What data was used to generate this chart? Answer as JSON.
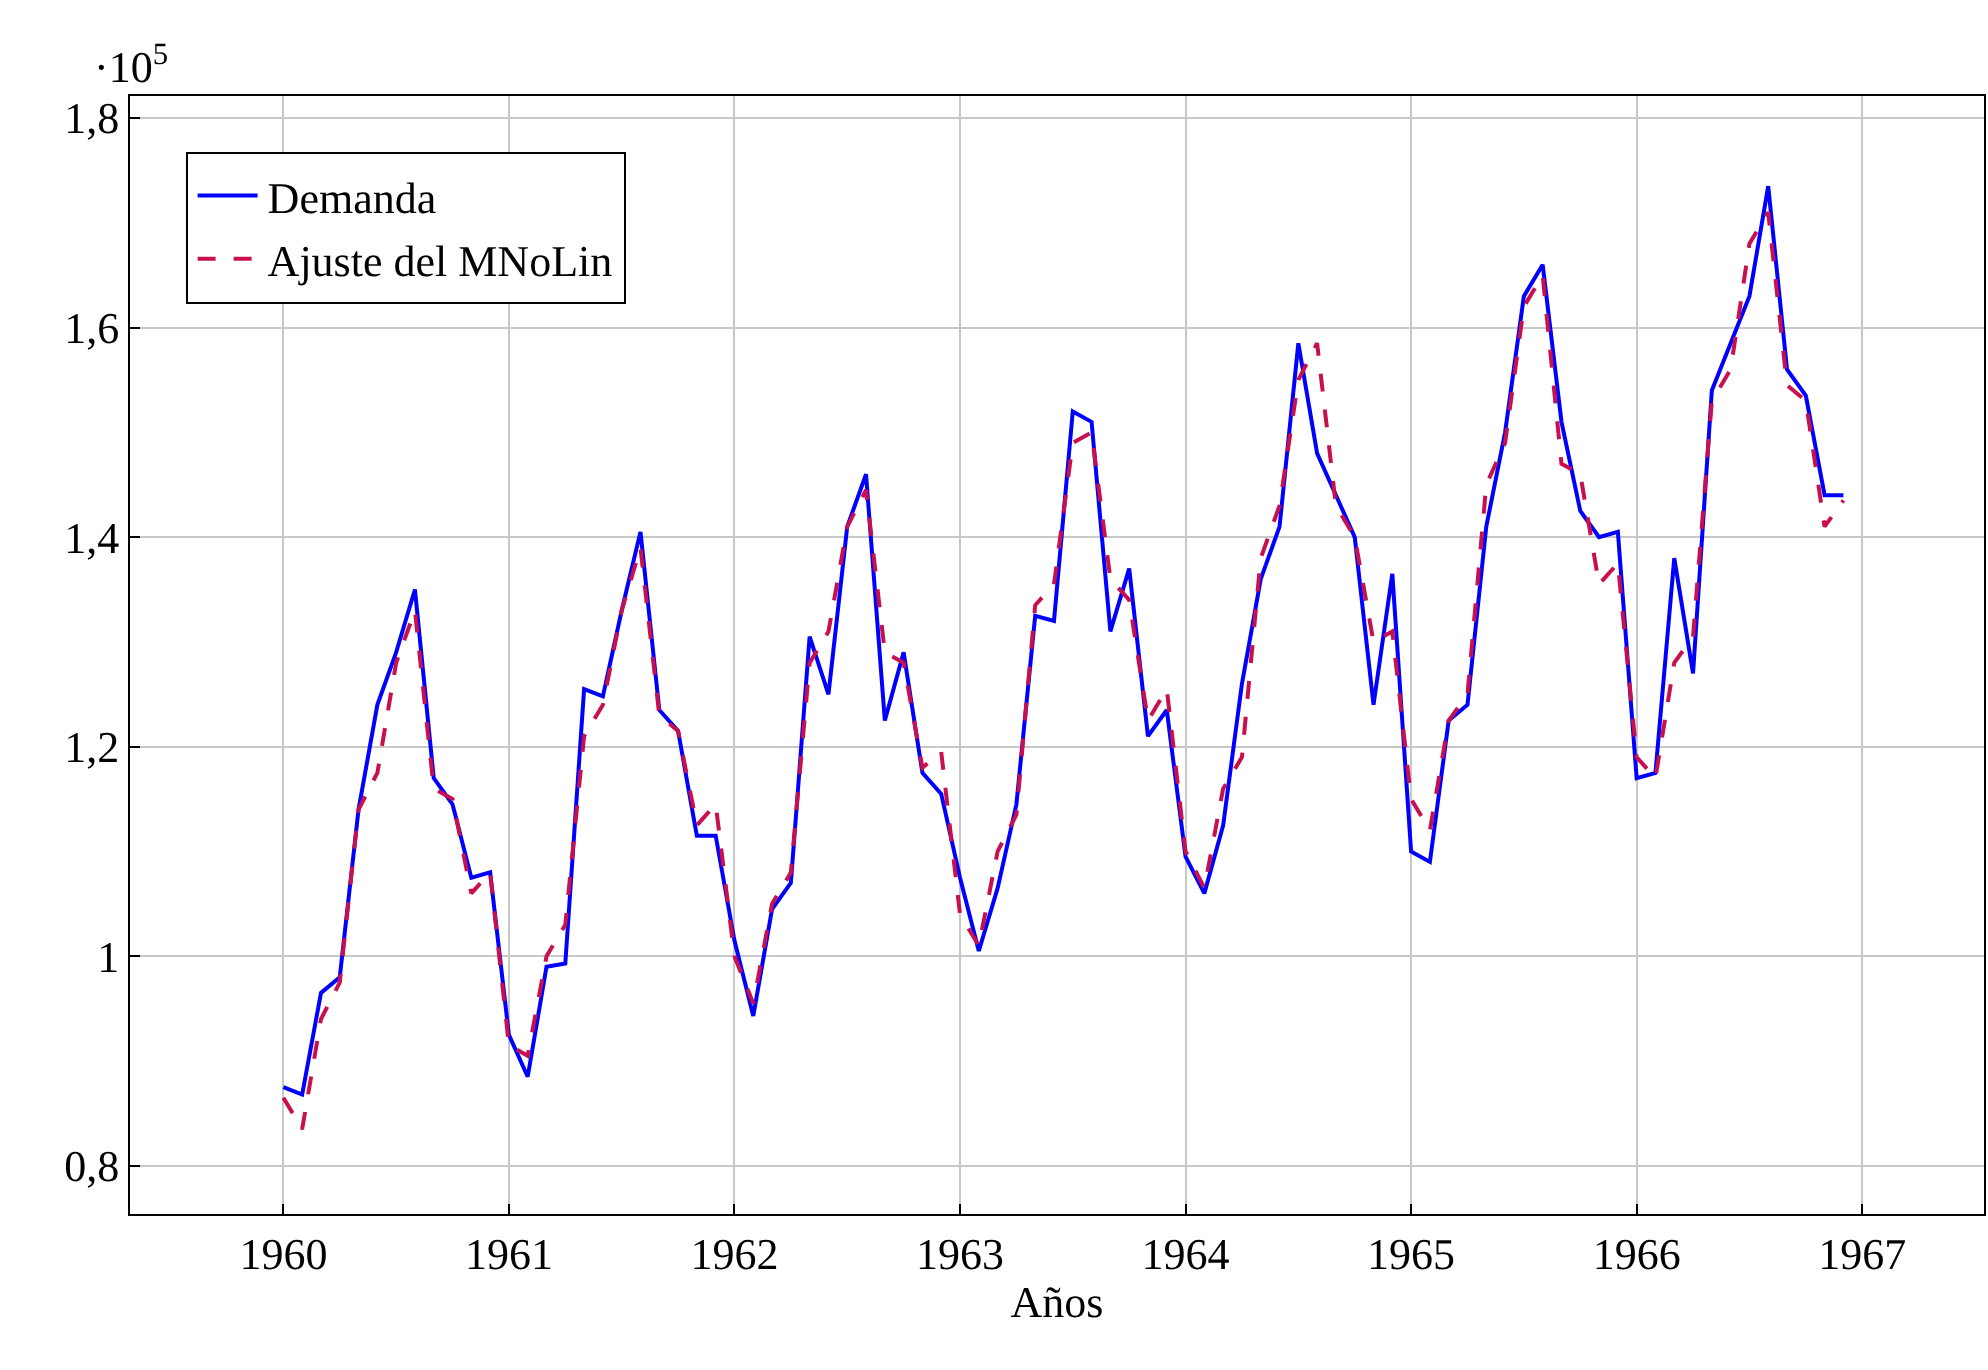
{
  "chart_data": {
    "type": "line",
    "xlabel": "Años",
    "annotations": [
      "·10$^{5}$"
    ],
    "x": [
      1960.0,
      1960.0833,
      1960.1667,
      1960.25,
      1960.3333,
      1960.4167,
      1960.5,
      1960.5833,
      1960.6667,
      1960.75,
      1960.8333,
      1960.9167,
      1961.0,
      1961.0833,
      1961.1667,
      1961.25,
      1961.3333,
      1961.4167,
      1961.5,
      1961.5833,
      1961.6667,
      1961.75,
      1961.8333,
      1961.9167,
      1962.0,
      1962.0833,
      1962.1667,
      1962.25,
      1962.3333,
      1962.4167,
      1962.5,
      1962.5833,
      1962.6667,
      1962.75,
      1962.8333,
      1962.9167,
      1963.0,
      1963.0833,
      1963.1667,
      1963.25,
      1963.3333,
      1963.4167,
      1963.5,
      1963.5833,
      1963.6667,
      1963.75,
      1963.8333,
      1963.9167,
      1964.0,
      1964.0833,
      1964.1667,
      1964.25,
      1964.3333,
      1964.4167,
      1964.5,
      1964.5833,
      1964.6667,
      1964.75,
      1964.8333,
      1964.9167,
      1965.0,
      1965.0833,
      1965.1667,
      1965.25,
      1965.3333,
      1965.4167,
      1965.5,
      1965.5833,
      1965.6667,
      1965.75,
      1965.8333,
      1965.9167,
      1966.0,
      1966.0833,
      1966.1667,
      1966.25,
      1966.3333,
      1966.4167,
      1966.5,
      1966.5833,
      1966.6667,
      1966.75,
      1966.8333,
      1966.9167
    ],
    "series": [
      {
        "name": "Demanda",
        "color": "#0000ff",
        "line_style": "solid",
        "values": [
          0.875,
          0.868,
          0.965,
          0.98,
          1.14,
          1.24,
          1.29,
          1.35,
          1.17,
          1.145,
          1.075,
          1.08,
          0.925,
          0.885,
          0.99,
          0.993,
          1.255,
          1.248,
          1.33,
          1.405,
          1.235,
          1.215,
          1.115,
          1.115,
          1.015,
          0.943,
          1.045,
          1.07,
          1.305,
          1.25,
          1.41,
          1.46,
          1.225,
          1.29,
          1.175,
          1.155,
          1.075,
          1.005,
          1.065,
          1.145,
          1.325,
          1.32,
          1.52,
          1.51,
          1.31,
          1.37,
          1.21,
          1.235,
          1.095,
          1.06,
          1.125,
          1.26,
          1.36,
          1.41,
          1.585,
          1.48,
          1.44,
          1.4,
          1.24,
          1.365,
          1.1,
          1.09,
          1.225,
          1.24,
          1.41,
          1.5,
          1.63,
          1.66,
          1.51,
          1.425,
          1.4,
          1.405,
          1.17,
          1.175,
          1.38,
          1.27,
          1.54,
          1.585,
          1.63,
          1.735,
          1.56,
          1.535,
          1.44,
          1.44
        ]
      },
      {
        "name": "Ajuste del MNoLin",
        "color": "#c8104e",
        "line_style": "dashed",
        "values": [
          0.865,
          0.835,
          0.94,
          0.975,
          1.14,
          1.175,
          1.28,
          1.33,
          1.16,
          1.15,
          1.06,
          1.08,
          0.915,
          0.905,
          1.0,
          1.03,
          1.21,
          1.24,
          1.33,
          1.39,
          1.23,
          1.215,
          1.125,
          1.145,
          1.0,
          0.955,
          1.05,
          1.08,
          1.28,
          1.31,
          1.41,
          1.445,
          1.29,
          1.28,
          1.18,
          1.195,
          1.04,
          1.01,
          1.1,
          1.135,
          1.335,
          1.355,
          1.49,
          1.5,
          1.36,
          1.34,
          1.225,
          1.255,
          1.1,
          1.065,
          1.16,
          1.19,
          1.38,
          1.43,
          1.55,
          1.585,
          1.43,
          1.4,
          1.3,
          1.31,
          1.15,
          1.12,
          1.225,
          1.25,
          1.45,
          1.49,
          1.62,
          1.65,
          1.47,
          1.46,
          1.355,
          1.375,
          1.19,
          1.17,
          1.28,
          1.305,
          1.53,
          1.56,
          1.68,
          1.71,
          1.545,
          1.53,
          1.41,
          1.435
        ]
      }
    ],
    "xlim": [
      1959.32,
      1967.54
    ],
    "ylim": [
      0.754,
      1.821
    ],
    "xticks": [
      1960,
      1961,
      1962,
      1963,
      1964,
      1965,
      1966,
      1967
    ],
    "yticks": [
      {
        "value": 0.8,
        "label": "0,8"
      },
      1,
      {
        "value": 1.2,
        "label": "1,2"
      },
      {
        "value": 1.4,
        "label": "1,4"
      },
      {
        "value": 1.6,
        "label": "1,6"
      },
      {
        "value": 1.8,
        "label": "1,8"
      }
    ],
    "grid": true,
    "legend": "top left",
    "marker": "none"
  }
}
